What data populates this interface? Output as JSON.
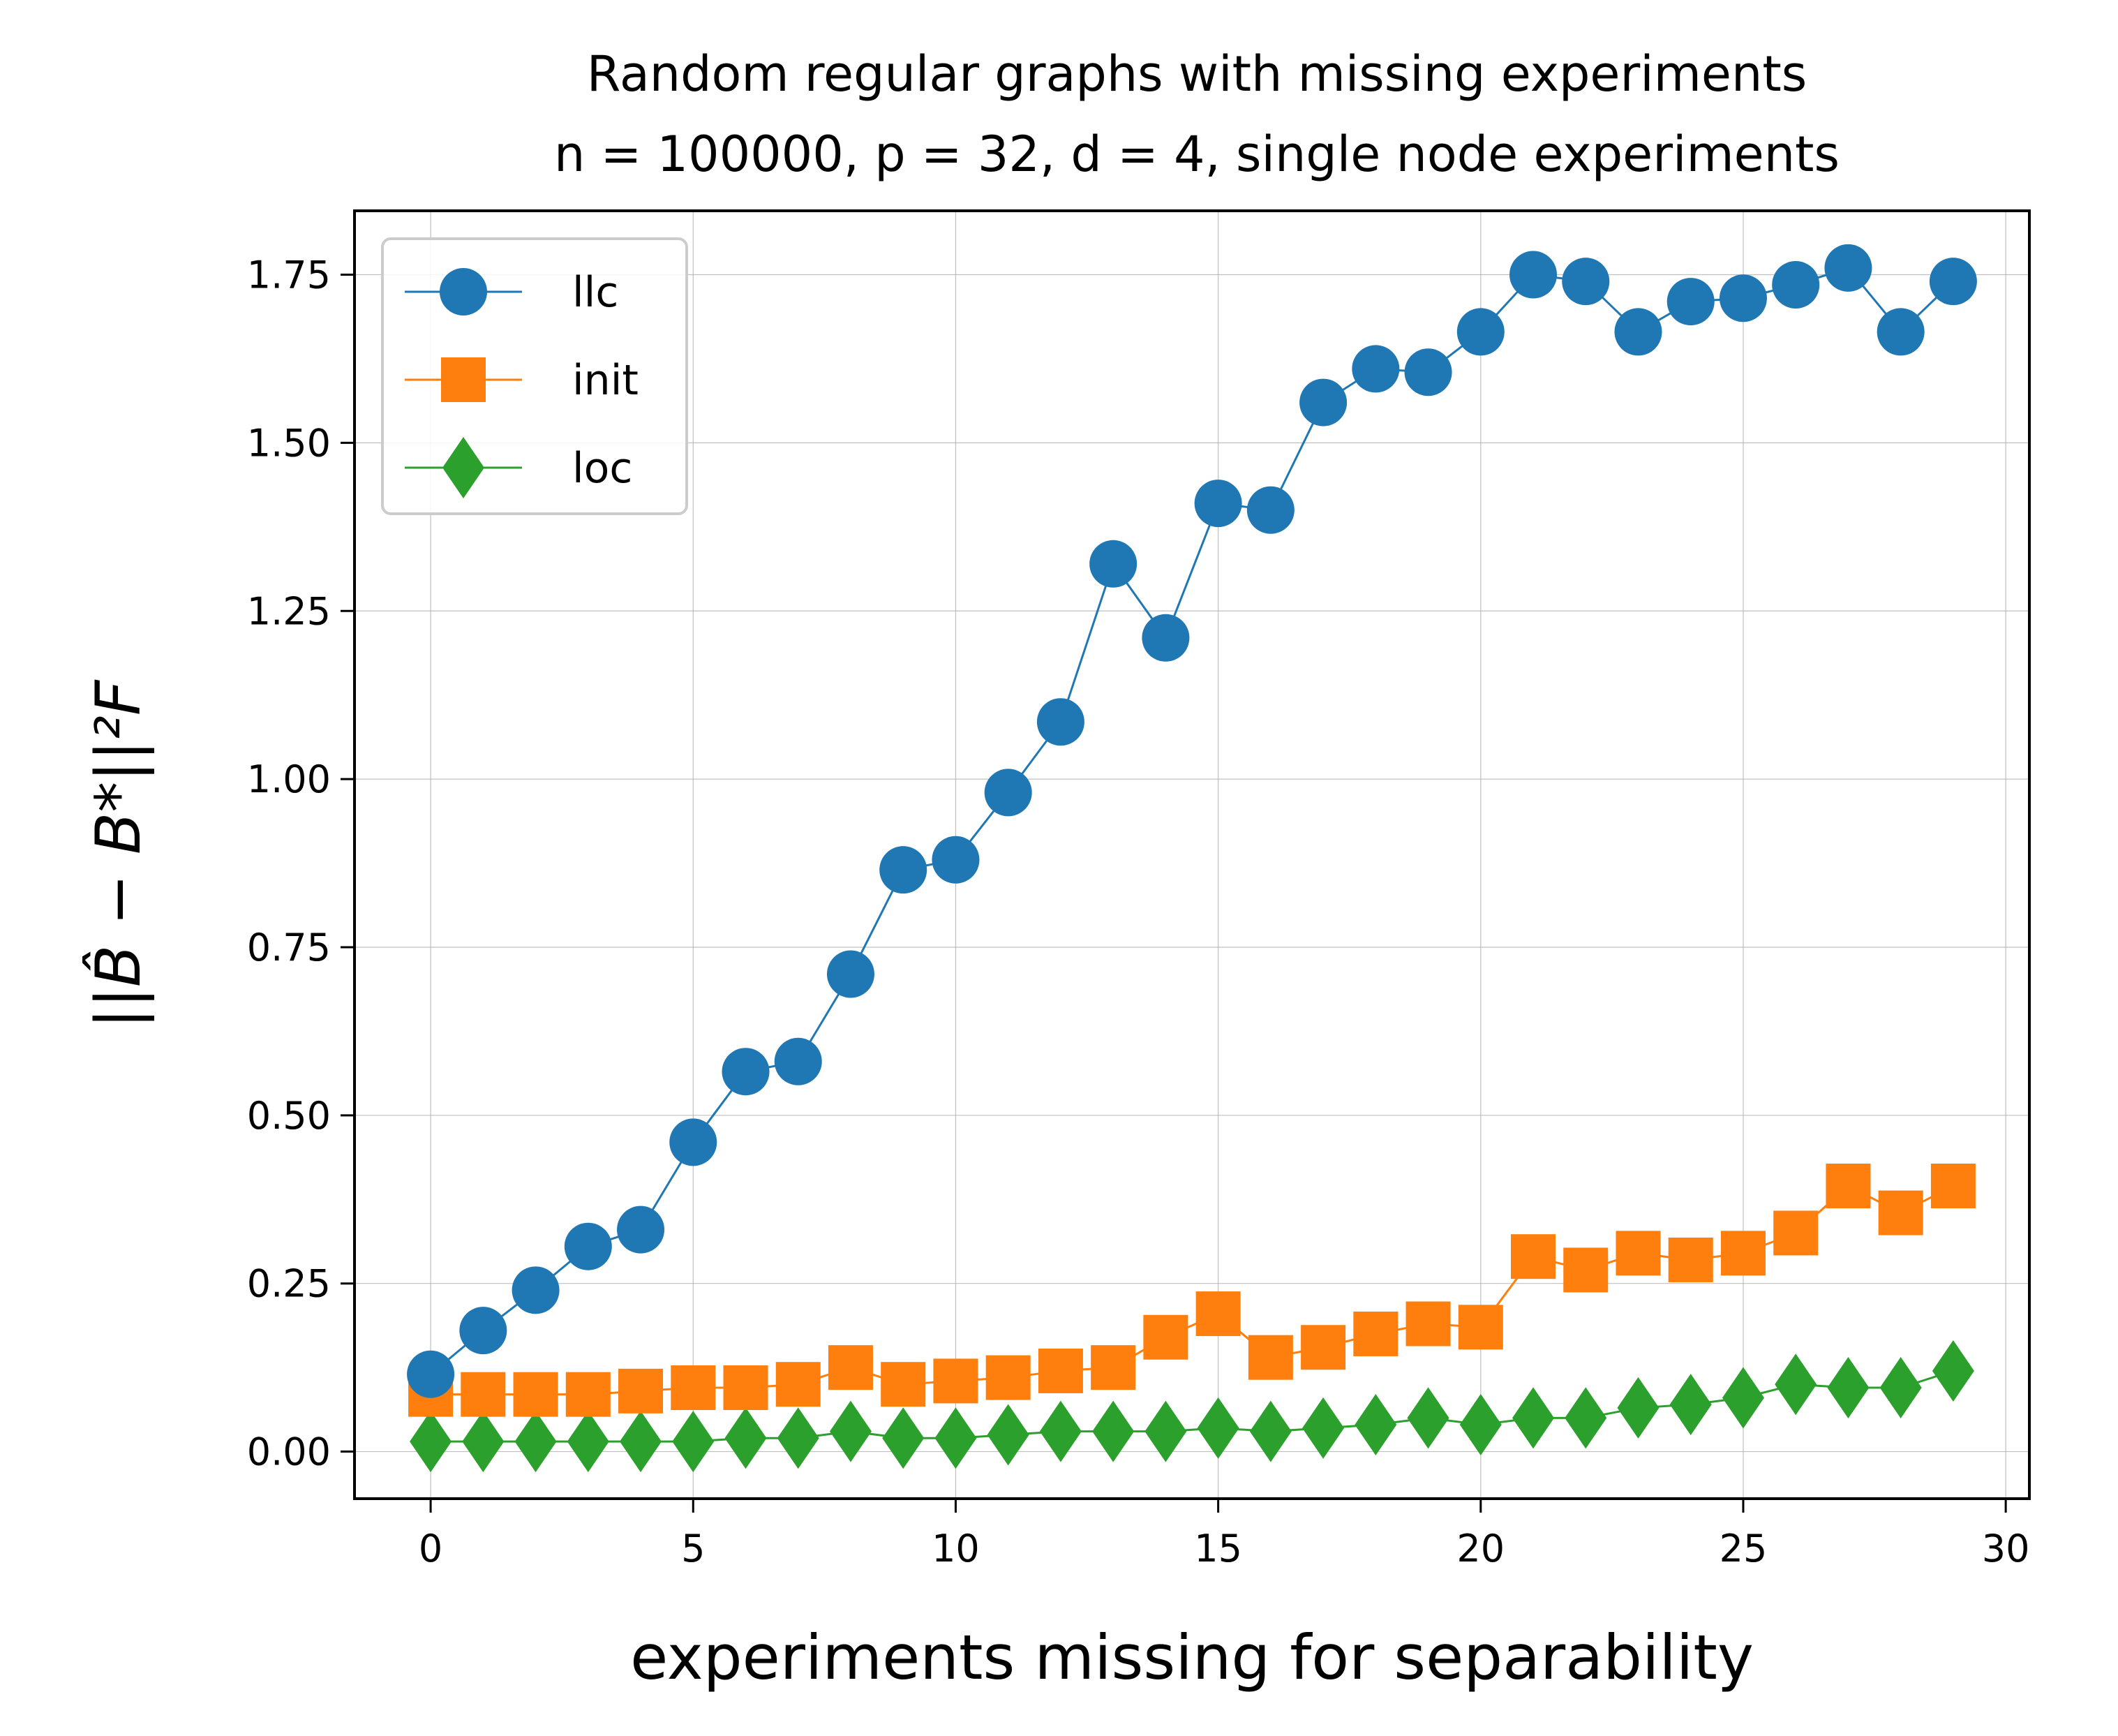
{
  "chart_data": {
    "type": "line",
    "title_lines": [
      "Random regular graphs with missing experiments",
      "n = 100000, p = 32, d = 4, single node experiments"
    ],
    "xlabel": "experiments missing for separability",
    "ylabel": "||B̂ − B*||²F",
    "xlim": [
      -1.45,
      30.45
    ],
    "ylim": [
      -0.07,
      1.845
    ],
    "xticks": [
      0,
      5,
      10,
      15,
      20,
      25,
      30
    ],
    "xtick_labels": [
      "0",
      "5",
      "10",
      "15",
      "20",
      "25",
      "30"
    ],
    "yticks": [
      0.0,
      0.25,
      0.5,
      0.75,
      1.0,
      1.25,
      1.5,
      1.75
    ],
    "ytick_labels": [
      "0.00",
      "0.25",
      "0.50",
      "0.75",
      "1.00",
      "1.25",
      "1.50",
      "1.75"
    ],
    "grid": true,
    "legend_position": "upper-left",
    "x": [
      0,
      1,
      2,
      3,
      4,
      5,
      6,
      7,
      8,
      9,
      10,
      11,
      12,
      13,
      14,
      15,
      16,
      17,
      18,
      19,
      20,
      21,
      22,
      23,
      24,
      25,
      26,
      27,
      28,
      29
    ],
    "series": [
      {
        "name": "llc",
        "color": "#1f77b4",
        "marker": "circle",
        "values": [
          0.115,
          0.18,
          0.24,
          0.305,
          0.33,
          0.46,
          0.565,
          0.58,
          0.71,
          0.865,
          0.88,
          0.98,
          1.085,
          1.32,
          1.21,
          1.41,
          1.4,
          1.56,
          1.61,
          1.605,
          1.665,
          1.75,
          1.74,
          1.665,
          1.71,
          1.715,
          1.735,
          1.76,
          1.665,
          1.74
        ]
      },
      {
        "name": "init",
        "color": "#ff7f0e",
        "marker": "square",
        "values": [
          0.085,
          0.085,
          0.085,
          0.085,
          0.09,
          0.095,
          0.095,
          0.1,
          0.125,
          0.1,
          0.105,
          0.11,
          0.12,
          0.125,
          0.17,
          0.205,
          0.14,
          0.155,
          0.175,
          0.19,
          0.185,
          0.29,
          0.27,
          0.295,
          0.285,
          0.295,
          0.325,
          0.395,
          0.355,
          0.395
        ]
      },
      {
        "name": "loc",
        "color": "#2ca02c",
        "marker": "diamond",
        "values": [
          0.015,
          0.015,
          0.015,
          0.015,
          0.015,
          0.015,
          0.02,
          0.02,
          0.03,
          0.02,
          0.02,
          0.025,
          0.03,
          0.03,
          0.03,
          0.035,
          0.03,
          0.035,
          0.04,
          0.05,
          0.04,
          0.05,
          0.05,
          0.065,
          0.07,
          0.08,
          0.1,
          0.095,
          0.095,
          0.12
        ]
      }
    ]
  }
}
